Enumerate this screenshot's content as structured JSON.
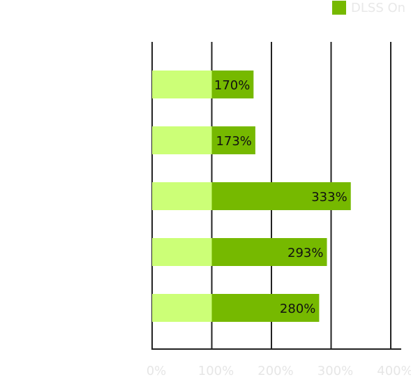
{
  "legend": {
    "label": "DLSS On",
    "color": "#76b900"
  },
  "chart_data": {
    "type": "bar",
    "orientation": "horizontal",
    "categories": [
      "",
      "",
      "",
      "",
      ""
    ],
    "series": [
      {
        "name": "DLSS On",
        "values": [
          170,
          173,
          333,
          293,
          280
        ]
      }
    ],
    "baseline": 100,
    "value_labels": [
      "170%",
      "173%",
      "333%",
      "293%",
      "280%"
    ],
    "xlim": [
      0,
      400
    ],
    "xticks": [
      0,
      100,
      200,
      300,
      400
    ],
    "xtick_labels": [
      "0%",
      "100%",
      "200%",
      "300%",
      "400%"
    ],
    "grid": true,
    "legend_position": "top-right",
    "colors": {
      "baseline": "#ccff77",
      "dlss_on": "#76b900",
      "grid": "#222222"
    }
  }
}
